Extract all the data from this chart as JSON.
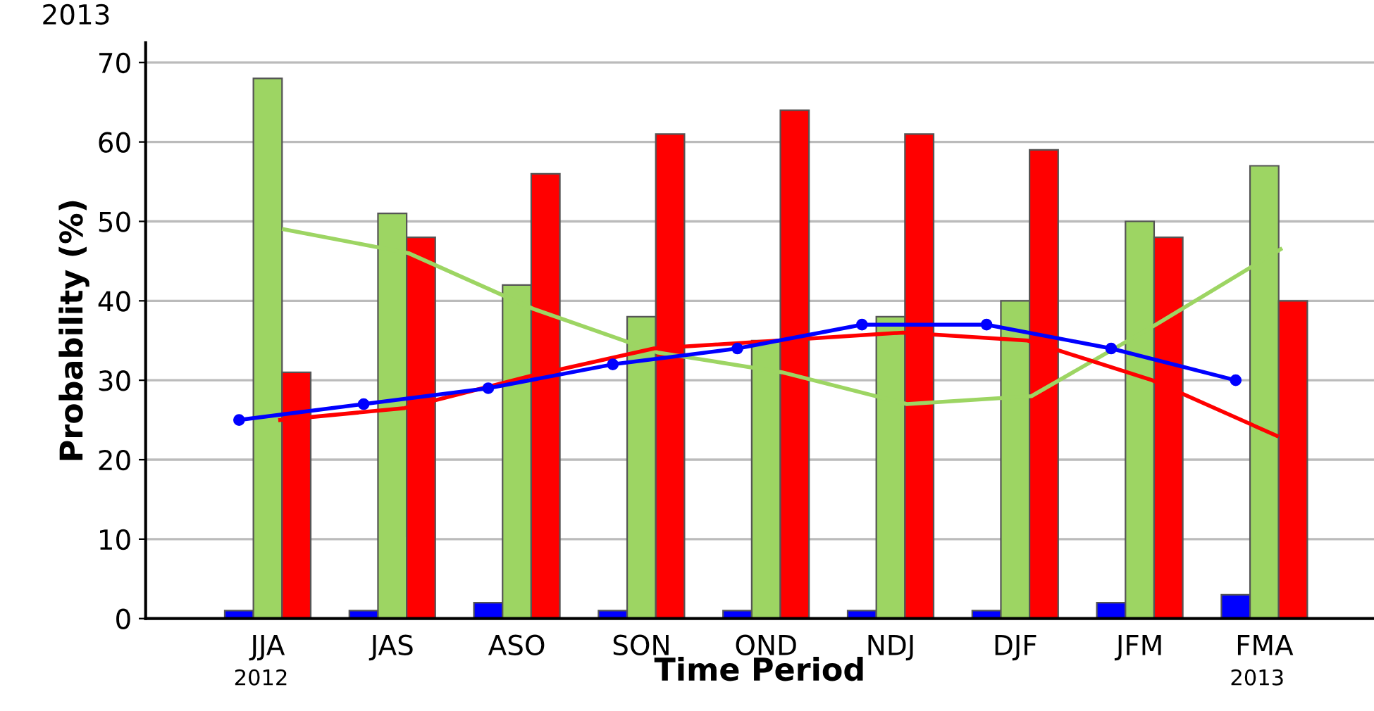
{
  "chart_data": {
    "type": "bar",
    "xlabel": "Time Period",
    "ylabel": "Probability (%)",
    "categories": [
      "JJA",
      "JAS",
      "ASO",
      "SON",
      "OND",
      "NDJ",
      "DJF",
      "JFM",
      "FMA"
    ],
    "series": [
      {
        "color": "#0000ff",
        "values": [
          1,
          1,
          2,
          1,
          1,
          1,
          1,
          2,
          3
        ]
      },
      {
        "color": "#9dd563",
        "values": [
          68,
          51,
          42,
          38,
          35,
          38,
          40,
          50,
          57
        ]
      },
      {
        "color": "#ff0000",
        "values": [
          31,
          48,
          56,
          61,
          64,
          61,
          59,
          48,
          40
        ]
      },
      {
        "type": "line",
        "color": "#9dd563",
        "marker": "none",
        "values": [
          49,
          46,
          39,
          33.5,
          31,
          27,
          28,
          37,
          46.5
        ]
      },
      {
        "type": "line",
        "color": "#ff0000",
        "marker": "none",
        "values": [
          25,
          26.5,
          30.5,
          34,
          35,
          36,
          35,
          30,
          23
        ]
      },
      {
        "type": "line",
        "color": "#0000ff",
        "marker": "circle",
        "values": [
          25,
          27,
          29,
          32,
          34,
          37,
          37,
          34,
          30
        ]
      }
    ],
    "ylim": [
      0,
      72.5
    ],
    "yticks": [
      0,
      10,
      20,
      30,
      40,
      50,
      60,
      70
    ],
    "grid": "y",
    "legend": false,
    "annotations": [
      "2012",
      "2013",
      "2013"
    ]
  }
}
